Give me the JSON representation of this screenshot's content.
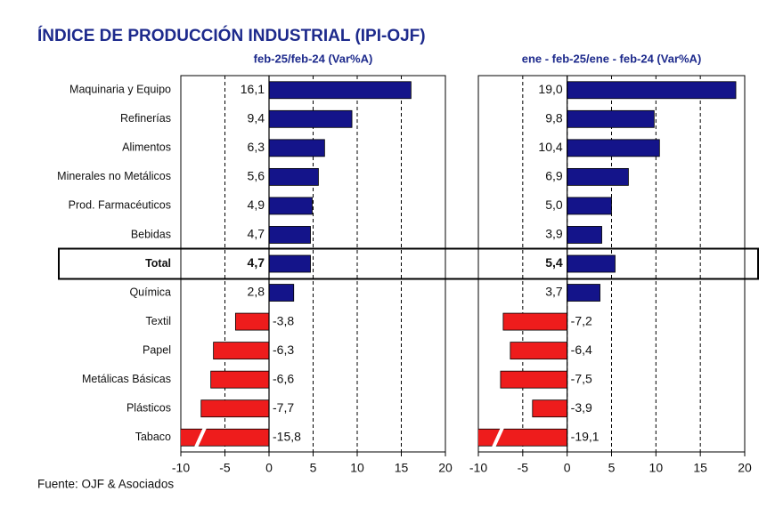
{
  "title": "ÍNDICE DE PRODUCCIÓN INDUSTRIAL (IPI-OJF)",
  "source": "Fuente: OJF & Asociados",
  "categories": [
    "Maquinaria y Equipo",
    "Refinerías",
    "Alimentos",
    "Minerales no Metálicos",
    "Prod. Farmacéuticos",
    "Bebidas",
    "Total",
    "Química",
    "Textil",
    "Papel",
    "Metálicas Básicas",
    "Plásticos",
    "Tabaco"
  ],
  "highlight": "Total",
  "chart_data": [
    {
      "type": "bar",
      "orientation": "horizontal",
      "subtitle": "feb-25/feb-24  (Var%A)",
      "values": [
        16.1,
        9.4,
        6.3,
        5.6,
        4.9,
        4.7,
        4.7,
        2.8,
        -3.8,
        -6.3,
        -6.6,
        -7.7,
        -15.8
      ],
      "value_labels": [
        "16,1",
        "9,4",
        "6,3",
        "5,6",
        "4,9",
        "4,7",
        "4,7",
        "2,8",
        "-3,8",
        "-6,3",
        "-6,6",
        "-7,7",
        "-15,8"
      ],
      "positive_color": "#14148a",
      "negative_color": "#ee1c1c",
      "xlim": [
        -10,
        20
      ],
      "xticks": [
        -10,
        -5,
        0,
        5,
        10,
        15,
        20
      ],
      "grid": true
    },
    {
      "type": "bar",
      "orientation": "horizontal",
      "subtitle": "ene - feb-25/ene - feb-24  (Var%A)",
      "values": [
        19.0,
        9.8,
        10.4,
        6.9,
        5.0,
        3.9,
        5.4,
        3.7,
        -7.2,
        -6.4,
        -7.5,
        -3.9,
        -19.1
      ],
      "value_labels": [
        "19,0",
        "9,8",
        "10,4",
        "6,9",
        "5,0",
        "3,9",
        "5,4",
        "3,7",
        "-7,2",
        "-6,4",
        "-7,5",
        "-3,9",
        "-19,1"
      ],
      "positive_color": "#14148a",
      "negative_color": "#ee1c1c",
      "xlim": [
        -10,
        20
      ],
      "xticks": [
        -10,
        -5,
        0,
        5,
        10,
        15,
        20
      ],
      "grid": true
    }
  ]
}
